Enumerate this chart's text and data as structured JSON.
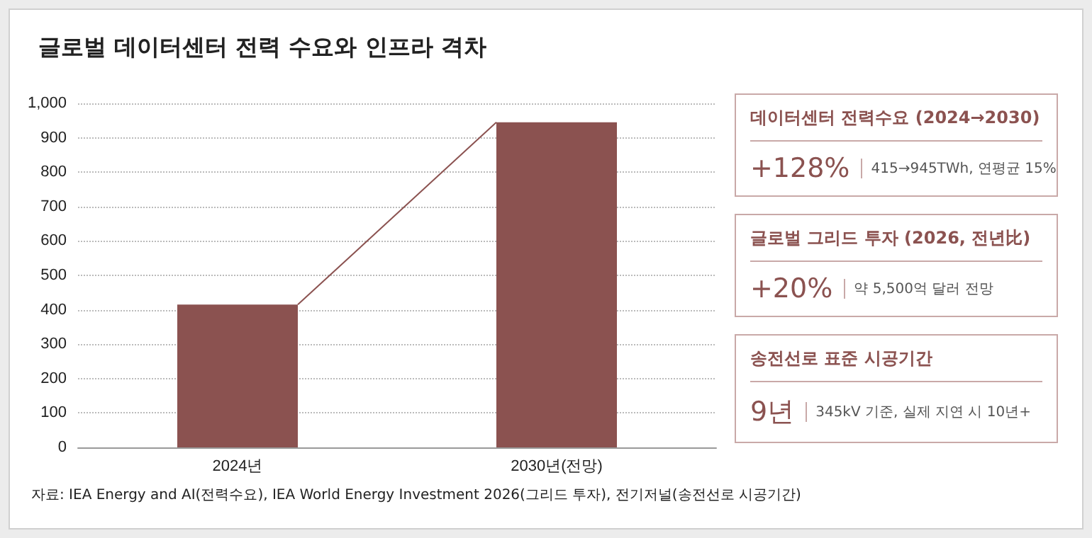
{
  "chart_data": [
    {
      "type": "bar",
      "title": "글로벌 데이터센터 전력 수요와 인프라 격차",
      "categories": [
        "2024년",
        "2030년(전망)"
      ],
      "values": [
        415,
        945
      ],
      "color": "#8b5250",
      "ylim": [
        0,
        1000
      ],
      "yticks": [
        0,
        100,
        200,
        300,
        400,
        500,
        600,
        700,
        800,
        900,
        {
          "value": 1000,
          "label": "1,000"
        }
      ],
      "grid": "y",
      "annotations": [
        "자료: IEA Energy and AI(전력수요), IEA World Energy Investment 2026(그리드 투자), 전기저널(송전선로 시공기간)"
      ]
    },
    {
      "type": "other",
      "annotations": [
        "데이터센터 전력수요 (2024→2030)",
        "+128%",
        "415→945TWh, 연평균 15%",
        "글로벌 그리드 투자 (2026, 전년比)",
        "+20%",
        "약 5,500억 달러 전망",
        "송전선로 표준 시공기간",
        "9년",
        "345kV 기준, 실제 지연 시 10년+"
      ]
    }
  ]
}
